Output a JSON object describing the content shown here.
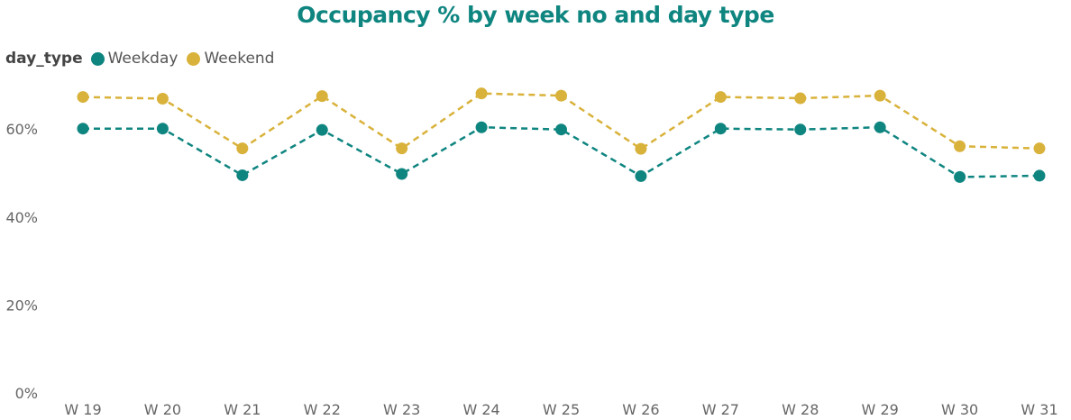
{
  "chart_data": {
    "type": "line",
    "title": "Occupancy % by week no and day type",
    "xlabel": "",
    "ylabel": "",
    "categories": [
      "W 19",
      "W 20",
      "W 21",
      "W 22",
      "W 23",
      "W 24",
      "W 25",
      "W 26",
      "W 27",
      "W 28",
      "W 29",
      "W 30",
      "W 31"
    ],
    "yticks": [
      0,
      20,
      40,
      60
    ],
    "ytick_labels": [
      "0%",
      "20%",
      "40%",
      "60%"
    ],
    "ylim": [
      0,
      70
    ],
    "grid": false,
    "legend": {
      "title": "day_type",
      "placement": "top-left"
    },
    "series": [
      {
        "name": "Weekday",
        "color": "#0f8580",
        "line_style": "dashed",
        "values": [
          60.1,
          60.1,
          49.5,
          59.8,
          49.8,
          60.4,
          59.9,
          49.3,
          60.1,
          59.9,
          60.4,
          49.1,
          49.4
        ]
      },
      {
        "name": "Weekend",
        "color": "#d9b23b",
        "line_style": "dashed",
        "values": [
          67.3,
          66.9,
          55.6,
          67.5,
          55.6,
          68.1,
          67.6,
          55.5,
          67.3,
          67.0,
          67.6,
          56.1,
          55.6
        ]
      }
    ]
  }
}
